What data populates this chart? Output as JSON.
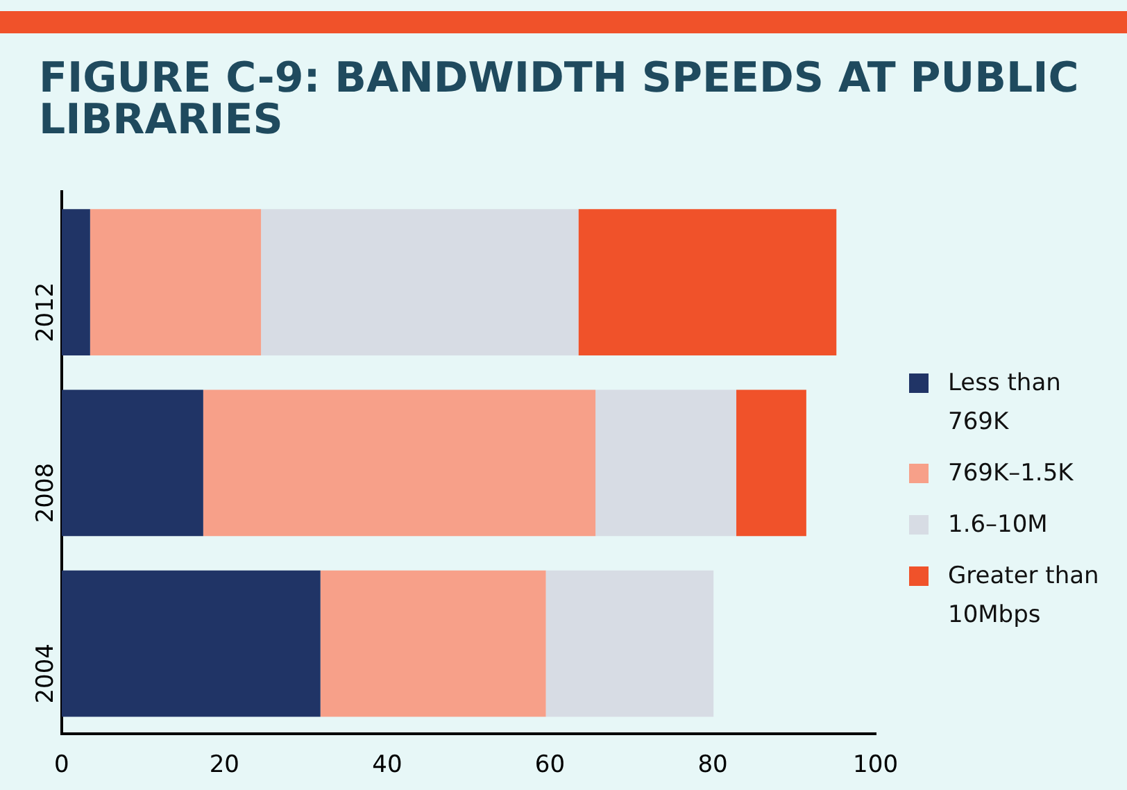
{
  "chart_data": {
    "type": "bar",
    "title": "FIGURE C-9: BANDWIDTH SPEEDS AT PUBLIC LIBRARIES",
    "orientation": "horizontal",
    "stacked": true,
    "categories": [
      "2012",
      "2008",
      "2004"
    ],
    "series": [
      {
        "name": "Less than 769K",
        "color": "#203466",
        "values": [
          3.5,
          17.4,
          31.8
        ]
      },
      {
        "name": "769K–1.5K",
        "color": "#f7a089",
        "values": [
          21,
          48.2,
          27.7
        ]
      },
      {
        "name": "1.6–10M",
        "color": "#d7dce4",
        "values": [
          39,
          17.3,
          20.6
        ]
      },
      {
        "name": "Greater than 10Mbps",
        "color": "#f0522a",
        "values": [
          31.7,
          8.6,
          null
        ]
      }
    ],
    "xlim": [
      0,
      100
    ],
    "xticks": [
      0,
      20,
      40,
      60,
      80,
      100
    ],
    "grid": false,
    "legend": "right"
  }
}
